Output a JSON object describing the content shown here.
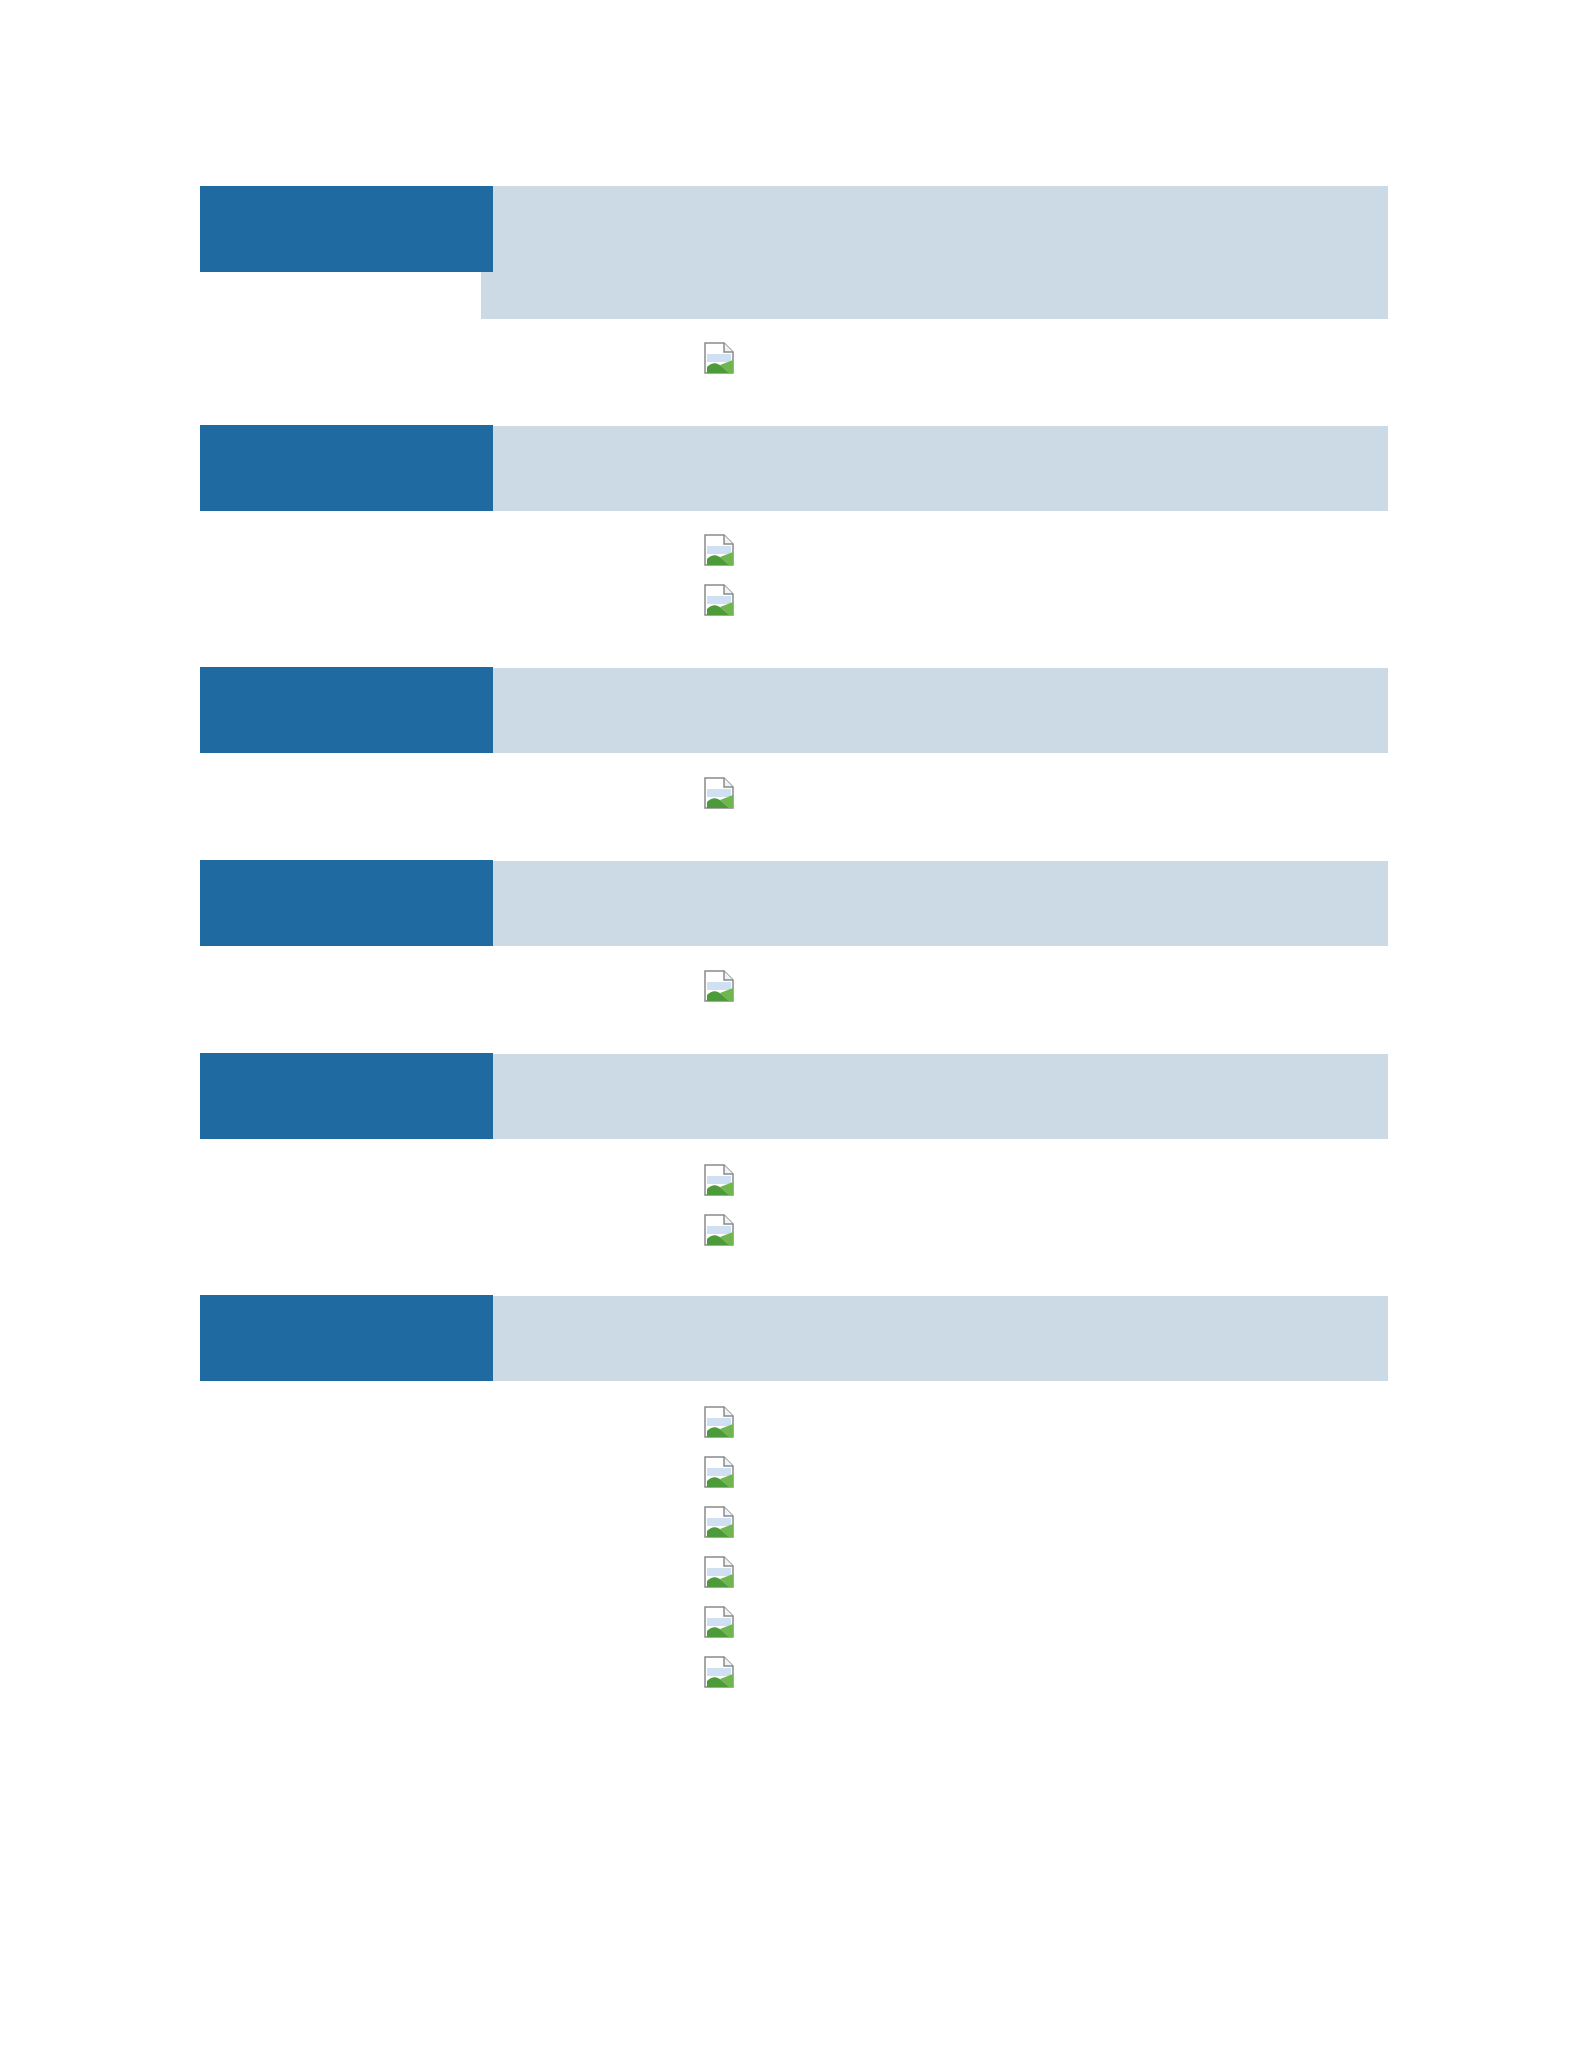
{
  "document": {
    "sections": [
      {
        "images": [
          {
            "icon": "broken-image-icon"
          }
        ]
      },
      {
        "images": [
          {
            "icon": "broken-image-icon"
          },
          {
            "icon": "broken-image-icon"
          }
        ]
      },
      {
        "images": [
          {
            "icon": "broken-image-icon"
          }
        ]
      },
      {
        "images": [
          {
            "icon": "broken-image-icon"
          }
        ]
      },
      {
        "images": [
          {
            "icon": "broken-image-icon"
          },
          {
            "icon": "broken-image-icon"
          }
        ]
      },
      {
        "images": [
          {
            "icon": "broken-image-icon"
          },
          {
            "icon": "broken-image-icon"
          },
          {
            "icon": "broken-image-icon"
          },
          {
            "icon": "broken-image-icon"
          },
          {
            "icon": "broken-image-icon"
          },
          {
            "icon": "broken-image-icon"
          }
        ]
      }
    ]
  },
  "colors": {
    "tab": "#1f6aa0",
    "bar": "#ccdae6"
  }
}
